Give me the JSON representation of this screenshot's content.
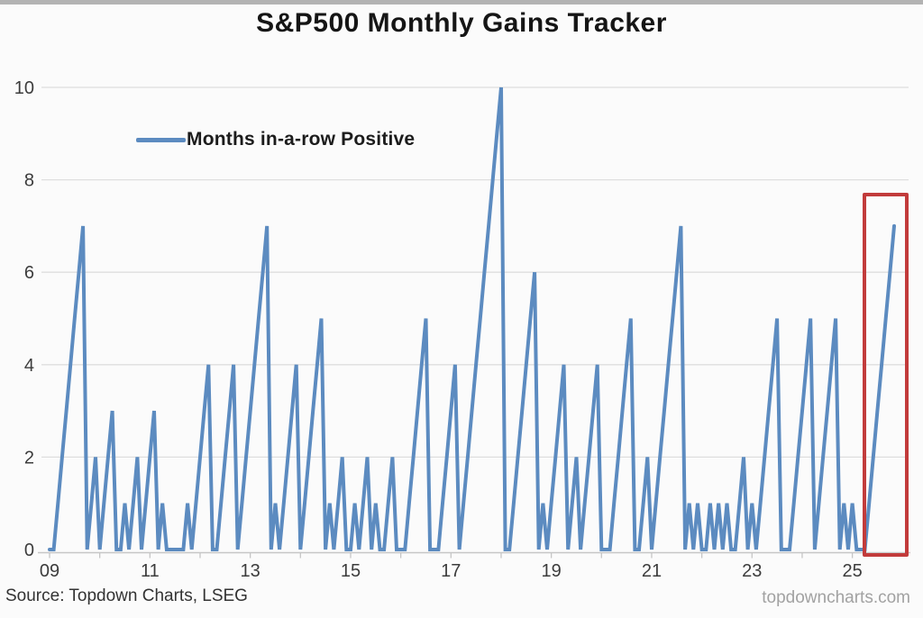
{
  "title": "S&P500 Monthly Gains Tracker",
  "legend": {
    "label": "Months in-a-row Positive"
  },
  "source": "Source: Topdown Charts, LSEG",
  "watermark": "topdowncharts.com",
  "colors": {
    "line": "#5c8bc0",
    "grid": "#dedede",
    "axis": "#c6c6c6",
    "tick": "#c6c6c6",
    "label_text": "#3c3c3c",
    "highlight_box": "#c23b3b",
    "top_bar": "#b3b3b3"
  },
  "chart_data": {
    "type": "line",
    "title": "S&P500 Monthly Gains Tracker",
    "series_name": "Months in-a-row Positive",
    "xlabel": "",
    "ylabel": "",
    "x_unit": "month",
    "x_range": [
      "2009-01",
      "2025-11"
    ],
    "ylim": [
      0,
      10
    ],
    "y_ticks": [
      0,
      2,
      4,
      6,
      8,
      10
    ],
    "grid": "horizontal",
    "legend_position": "top-left-inside",
    "x_tick_labels": [
      "09",
      "11",
      "13",
      "15",
      "17",
      "19",
      "21",
      "23",
      "25"
    ],
    "x_tick_month_indices": [
      0,
      24,
      48,
      72,
      96,
      120,
      144,
      168,
      192
    ],
    "values_by_year": [
      {
        "year": 2009,
        "monthly": [
          0,
          0,
          1,
          2,
          3,
          4,
          5,
          6,
          7,
          0,
          1,
          2
        ]
      },
      {
        "year": 2010,
        "monthly": [
          0,
          1,
          2,
          3,
          0,
          0,
          1,
          0,
          1,
          2,
          0,
          1
        ]
      },
      {
        "year": 2011,
        "monthly": [
          2,
          3,
          0,
          1,
          0,
          0,
          0,
          0,
          0,
          1,
          0,
          1
        ]
      },
      {
        "year": 2012,
        "monthly": [
          2,
          3,
          4,
          0,
          0,
          1,
          2,
          3,
          4,
          0,
          1,
          2
        ]
      },
      {
        "year": 2013,
        "monthly": [
          3,
          4,
          5,
          6,
          7,
          0,
          1,
          0,
          1,
          2,
          3,
          4
        ]
      },
      {
        "year": 2014,
        "monthly": [
          0,
          1,
          2,
          3,
          4,
          5,
          0,
          1,
          0,
          1,
          2,
          0
        ]
      },
      {
        "year": 2015,
        "monthly": [
          0,
          1,
          0,
          1,
          2,
          0,
          1,
          0,
          0,
          1,
          2,
          0
        ]
      },
      {
        "year": 2016,
        "monthly": [
          0,
          0,
          1,
          2,
          3,
          4,
          5,
          0,
          0,
          0,
          1,
          2
        ]
      },
      {
        "year": 2017,
        "monthly": [
          3,
          4,
          0,
          1,
          2,
          3,
          4,
          5,
          6,
          7,
          8,
          9
        ]
      },
      {
        "year": 2018,
        "monthly": [
          10,
          0,
          0,
          1,
          2,
          3,
          4,
          5,
          6,
          0,
          1,
          0
        ]
      },
      {
        "year": 2019,
        "monthly": [
          1,
          2,
          3,
          4,
          0,
          1,
          2,
          0,
          1,
          2,
          3,
          4
        ]
      },
      {
        "year": 2020,
        "monthly": [
          0,
          0,
          0,
          1,
          2,
          3,
          4,
          5,
          0,
          0,
          1,
          2
        ]
      },
      {
        "year": 2021,
        "monthly": [
          0,
          1,
          2,
          3,
          4,
          5,
          6,
          7,
          0,
          1,
          0,
          1
        ]
      },
      {
        "year": 2022,
        "monthly": [
          0,
          0,
          1,
          0,
          1,
          0,
          1,
          0,
          0,
          1,
          2,
          0
        ]
      },
      {
        "year": 2023,
        "monthly": [
          1,
          0,
          1,
          2,
          3,
          4,
          5,
          0,
          0,
          0,
          1,
          2
        ]
      },
      {
        "year": 2024,
        "monthly": [
          3,
          4,
          5,
          0,
          1,
          2,
          3,
          4,
          5,
          0,
          1,
          0
        ]
      },
      {
        "year": 2025,
        "monthly": [
          1,
          0,
          0,
          0,
          1,
          2,
          3,
          4,
          5,
          6,
          7
        ]
      }
    ],
    "annotation": {
      "type": "highlight-box",
      "highlights": "final rise from 0 to 7 during 2025",
      "last_value": 7
    }
  }
}
